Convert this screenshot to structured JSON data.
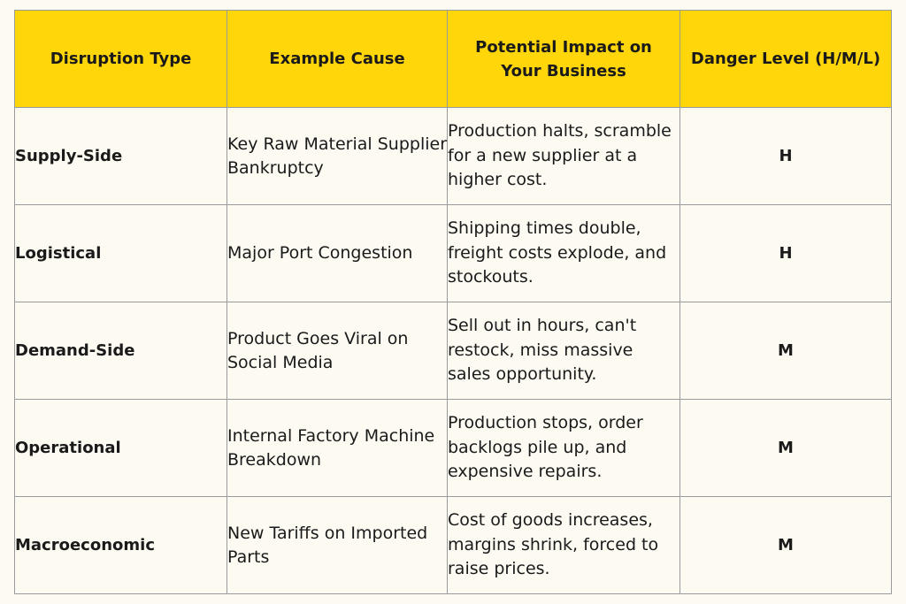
{
  "table": {
    "headers": [
      "Disruption Type",
      "Example Cause",
      "Potential Impact on Your Business",
      "Danger Level (H/M/L)"
    ],
    "rows": [
      {
        "type": "Supply-Side",
        "cause": "Key Raw Material Supplier Bankruptcy",
        "impact": "Production halts, scramble for a new supplier at a higher cost.",
        "level": "H"
      },
      {
        "type": "Logistical",
        "cause": "Major Port Congestion",
        "impact": "Shipping times double, freight costs explode, and stockouts.",
        "level": "H"
      },
      {
        "type": "Demand-Side",
        "cause": "Product Goes Viral on Social Media",
        "impact": "Sell out in hours, can't restock, miss massive sales opportunity.",
        "level": "M"
      },
      {
        "type": "Operational",
        "cause": "Internal Factory Machine Breakdown",
        "impact": "Production stops, order backlogs pile up, and expensive repairs.",
        "level": "M"
      },
      {
        "type": "Macroeconomic",
        "cause": "New Tariffs on Imported Parts",
        "impact": "Cost of goods increases, margins shrink, forced to raise prices.",
        "level": "M"
      }
    ]
  },
  "colors": {
    "header_background": "#ffd60a",
    "page_background": "#fdfaf2",
    "border": "#9a9a9a"
  }
}
